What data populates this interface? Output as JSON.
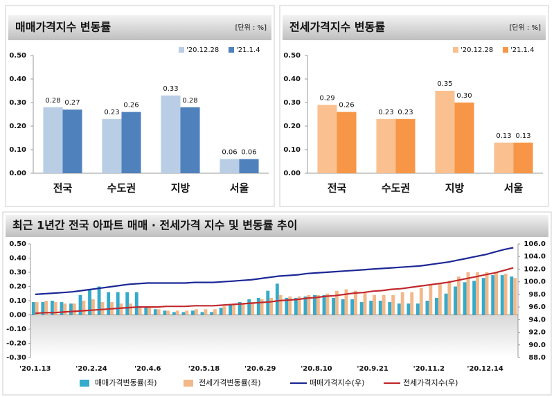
{
  "chart_data": [
    {
      "type": "bar",
      "title": "매매가격지수 변동률",
      "unit": "[단위 : %]",
      "categories": [
        "전국",
        "수도권",
        "지방",
        "서울"
      ],
      "series": [
        {
          "name": "'20.12.28",
          "color": "#b9cde5",
          "values": [
            0.28,
            0.23,
            0.33,
            0.06
          ]
        },
        {
          "name": "'21.1.4",
          "color": "#4f81bd",
          "values": [
            0.27,
            0.26,
            0.28,
            0.06
          ]
        }
      ],
      "ylim": [
        0,
        0.5
      ],
      "yticks": [
        {
          "value": 0,
          "label": "0.00"
        },
        {
          "value": 0.1,
          "label": "0.10"
        },
        {
          "value": 0.2,
          "label": "0.20"
        },
        {
          "value": 0.3,
          "label": "0.30"
        },
        {
          "value": 0.4,
          "label": "0.40"
        },
        {
          "value": 0.5,
          "label": "0.50"
        }
      ]
    },
    {
      "type": "bar",
      "title": "전세가격지수 변동률",
      "unit": "[단위 : %]",
      "categories": [
        "전국",
        "수도권",
        "지방",
        "서울"
      ],
      "series": [
        {
          "name": "'20.12.28",
          "color": "#fac090",
          "values": [
            0.29,
            0.23,
            0.35,
            0.13
          ]
        },
        {
          "name": "'21.1.4",
          "color": "#f79646",
          "values": [
            0.26,
            0.23,
            0.3,
            0.13
          ],
          "value_labels": [
            "0.26",
            "0.23",
            "0.30",
            "0.13"
          ]
        }
      ],
      "ylim": [
        0,
        0.5
      ],
      "yticks": [
        {
          "value": 0,
          "label": "0.00"
        },
        {
          "value": 0.1,
          "label": "0.10"
        },
        {
          "value": 0.2,
          "label": "0.20"
        },
        {
          "value": 0.3,
          "label": "0.30"
        },
        {
          "value": 0.4,
          "label": "0.40"
        },
        {
          "value": 0.5,
          "label": "0.50"
        }
      ]
    },
    {
      "type": "combo",
      "title": "최근 1년간 전국 아파트 매매 · 전세가격 지수 및 변동률 추이",
      "categories": [
        "'20.1.13",
        null,
        null,
        null,
        null,
        null,
        "'20.2.24",
        null,
        null,
        null,
        null,
        null,
        "'20.4.6",
        null,
        null,
        null,
        null,
        null,
        "'20.5.18",
        null,
        null,
        null,
        null,
        null,
        "'20.6.29",
        null,
        null,
        null,
        null,
        null,
        "'20.8.10",
        null,
        null,
        null,
        null,
        null,
        "'20.9.21",
        null,
        null,
        null,
        null,
        null,
        "'20.11.2",
        null,
        null,
        null,
        null,
        null,
        "'20.12.14",
        null,
        null,
        null
      ],
      "series": [
        {
          "name": "매매가격변동률(좌)",
          "type": "bar",
          "color": "#35aacb",
          "values": [
            0.09,
            0.09,
            0.1,
            0.09,
            0.08,
            0.14,
            0.18,
            0.2,
            0.16,
            0.16,
            0.16,
            0.16,
            0.06,
            0.04,
            0.03,
            0.02,
            0.02,
            0.03,
            0.02,
            0.02,
            0.05,
            0.07,
            0.09,
            0.11,
            0.12,
            0.17,
            0.22,
            0.12,
            0.12,
            0.13,
            0.14,
            0.14,
            0.12,
            0.11,
            0.11,
            0.09,
            0.1,
            0.1,
            0.09,
            0.08,
            0.08,
            0.08,
            0.1,
            0.12,
            0.15,
            0.2,
            0.23,
            0.24,
            0.26,
            0.28,
            0.28,
            0.27
          ]
        },
        {
          "name": "전세가격변동률(좌)",
          "type": "bar",
          "color": "#f3b88a",
          "values": [
            0.09,
            0.1,
            0.09,
            0.08,
            0.08,
            0.1,
            0.11,
            0.09,
            0.09,
            0.08,
            0.08,
            0.06,
            0.05,
            0.04,
            0.03,
            0.03,
            0.03,
            0.04,
            0.04,
            0.04,
            0.06,
            0.08,
            0.08,
            0.09,
            0.11,
            0.12,
            0.14,
            0.13,
            0.13,
            0.14,
            0.14,
            0.15,
            0.17,
            0.18,
            0.17,
            0.16,
            0.14,
            0.14,
            0.14,
            0.16,
            0.16,
            0.19,
            0.21,
            0.22,
            0.24,
            0.27,
            0.3,
            0.3,
            0.3,
            0.3,
            0.29,
            0.26
          ]
        },
        {
          "name": "매매가격지수(우)",
          "type": "line",
          "axis": "y2",
          "color": "#1c2796",
          "values": [
            98.0,
            98.1,
            98.2,
            98.3,
            98.4,
            98.6,
            98.8,
            99.0,
            99.2,
            99.4,
            99.6,
            99.7,
            99.8,
            99.8,
            99.8,
            99.8,
            99.8,
            99.9,
            99.9,
            99.9,
            100.0,
            100.1,
            100.2,
            100.3,
            100.5,
            100.7,
            100.9,
            101.0,
            101.1,
            101.3,
            101.4,
            101.5,
            101.6,
            101.7,
            101.8,
            101.9,
            102.0,
            102.1,
            102.2,
            102.3,
            102.4,
            102.5,
            102.7,
            102.9,
            103.1,
            103.4,
            103.7,
            104.0,
            104.3,
            104.7,
            105.1,
            105.4
          ]
        },
        {
          "name": "전세가격지수(우)",
          "type": "line",
          "axis": "y2",
          "color": "#c0282d",
          "values": [
            95.0,
            95.1,
            95.1,
            95.2,
            95.3,
            95.4,
            95.5,
            95.6,
            95.7,
            95.8,
            95.9,
            96.0,
            96.0,
            96.0,
            96.1,
            96.1,
            96.1,
            96.2,
            96.2,
            96.2,
            96.3,
            96.4,
            96.5,
            96.6,
            96.7,
            96.8,
            97.0,
            97.1,
            97.2,
            97.4,
            97.5,
            97.7,
            97.8,
            98.0,
            98.2,
            98.3,
            98.5,
            98.6,
            98.8,
            98.9,
            99.1,
            99.3,
            99.5,
            99.7,
            99.9,
            100.2,
            100.5,
            100.8,
            101.1,
            101.4,
            101.8,
            102.2
          ]
        }
      ],
      "ylim": [
        -0.3,
        0.5
      ],
      "yticks": [
        {
          "value": -0.3,
          "label": "-0.30"
        },
        {
          "value": -0.2,
          "label": "-0.20"
        },
        {
          "value": -0.1,
          "label": "-0.10"
        },
        {
          "value": 0,
          "label": "0.00"
        },
        {
          "value": 0.1,
          "label": "0.10"
        },
        {
          "value": 0.2,
          "label": "0.20"
        },
        {
          "value": 0.3,
          "label": "0.30"
        },
        {
          "value": 0.4,
          "label": "0.40"
        },
        {
          "value": 0.5,
          "label": "0.50"
        }
      ],
      "y2lim": [
        88,
        106
      ],
      "y2ticks": [
        {
          "value": 88,
          "label": "88.0"
        },
        {
          "value": 90,
          "label": "90.0"
        },
        {
          "value": 92,
          "label": "92.0"
        },
        {
          "value": 94,
          "label": "94.0"
        },
        {
          "value": 96,
          "label": "96.0"
        },
        {
          "value": 98,
          "label": "98.0"
        },
        {
          "value": 100,
          "label": "100.0"
        },
        {
          "value": 102,
          "label": "102.0"
        },
        {
          "value": 104,
          "label": "104.0"
        },
        {
          "value": 106,
          "label": "106.0"
        }
      ]
    }
  ]
}
